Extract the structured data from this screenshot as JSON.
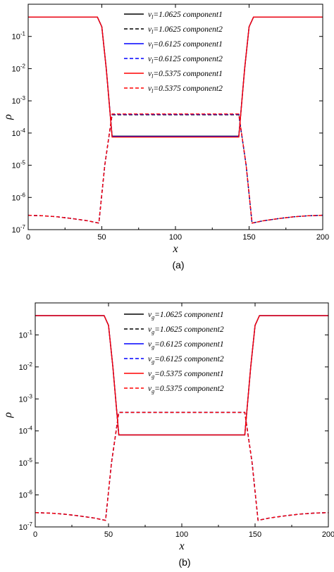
{
  "chart_data": [
    {
      "type": "line",
      "panel_label": "(a)",
      "xlabel": "x",
      "ylabel": "ρ",
      "xlim": [
        0,
        200
      ],
      "ylim": [
        1e-07,
        1
      ],
      "yscale": "log",
      "xticks": [
        "0",
        "50",
        "100",
        "150",
        "200"
      ],
      "yticks": [
        {
          "base": "10",
          "exp": "-1"
        },
        {
          "base": "10",
          "exp": "-2"
        },
        {
          "base": "10",
          "exp": "-3"
        },
        {
          "base": "10",
          "exp": "-4"
        },
        {
          "base": "10",
          "exp": "-5"
        },
        {
          "base": "10",
          "exp": "-6"
        },
        {
          "base": "10",
          "exp": "-7"
        }
      ],
      "legend_position": "top-center",
      "series": [
        {
          "name": "ν_l=1.0625  component1",
          "var": "ν",
          "sub": "l",
          "rest": "=1.0625  component1",
          "color": "#000000",
          "dash": "solid",
          "x": [
            0,
            47,
            50,
            53,
            57,
            143,
            147,
            150,
            153,
            200
          ],
          "y": [
            0.4,
            0.4,
            0.2,
            0.01,
            8e-05,
            8e-05,
            0.01,
            0.2,
            0.4,
            0.4
          ]
        },
        {
          "name": "ν_l=1.0625  component2",
          "var": "ν",
          "sub": "l",
          "rest": "=1.0625  component2",
          "color": "#000000",
          "dash": "dashed",
          "x": [
            0,
            10,
            20,
            30,
            40,
            48,
            52,
            57,
            143,
            148,
            152,
            160,
            170,
            180,
            190,
            200
          ],
          "y": [
            2.8e-07,
            2.7e-07,
            2.5e-07,
            2.2e-07,
            1.9e-07,
            1.6e-07,
            1e-05,
            0.00037,
            0.00037,
            1e-05,
            1.6e-07,
            1.9e-07,
            2.2e-07,
            2.5e-07,
            2.7e-07,
            2.8e-07
          ]
        },
        {
          "name": "ν_l=0.6125  component1",
          "var": "ν",
          "sub": "l",
          "rest": "=0.6125  component1",
          "color": "#0000ff",
          "dash": "solid",
          "x": [
            0,
            47,
            50,
            53,
            57,
            143,
            147,
            150,
            153,
            200
          ],
          "y": [
            0.4,
            0.4,
            0.2,
            0.01,
            7.8e-05,
            7.8e-05,
            0.01,
            0.2,
            0.4,
            0.4
          ]
        },
        {
          "name": "ν_l=0.6125  component2",
          "var": "ν",
          "sub": "l",
          "rest": "=0.6125  component2",
          "color": "#0000ff",
          "dash": "dashed",
          "x": [
            0,
            10,
            20,
            30,
            40,
            48,
            52,
            57,
            143,
            148,
            152,
            160,
            170,
            180,
            190,
            200
          ],
          "y": [
            2.8e-07,
            2.7e-07,
            2.5e-07,
            2.2e-07,
            1.9e-07,
            1.6e-07,
            1e-05,
            0.00038,
            0.00038,
            1e-05,
            1.6e-07,
            1.9e-07,
            2.2e-07,
            2.5e-07,
            2.7e-07,
            2.8e-07
          ]
        },
        {
          "name": "ν_l=0.5375  component1",
          "var": "ν",
          "sub": "l",
          "rest": "=0.5375  component1",
          "color": "#ff0000",
          "dash": "solid",
          "x": [
            0,
            47,
            50,
            53,
            57,
            143,
            147,
            150,
            153,
            200
          ],
          "y": [
            0.4,
            0.4,
            0.2,
            0.01,
            7.5e-05,
            7.5e-05,
            0.01,
            0.2,
            0.4,
            0.4
          ]
        },
        {
          "name": "ν_l=0.5375  component2",
          "var": "ν",
          "sub": "l",
          "rest": "=0.5375  component2",
          "color": "#ff0000",
          "dash": "dashed",
          "x": [
            0,
            10,
            20,
            30,
            40,
            48,
            52,
            57,
            143,
            148,
            152,
            160,
            170,
            180,
            190,
            200
          ],
          "y": [
            2.8e-07,
            2.7e-07,
            2.5e-07,
            2.2e-07,
            1.9e-07,
            1.6e-07,
            1e-05,
            0.00039,
            0.00039,
            1e-05,
            1.6e-07,
            1.9e-07,
            2.2e-07,
            2.5e-07,
            2.7e-07,
            2.8e-07
          ]
        }
      ]
    },
    {
      "type": "line",
      "panel_label": "(b)",
      "xlabel": "x",
      "ylabel": "ρ",
      "xlim": [
        0,
        200
      ],
      "ylim": [
        1e-07,
        1
      ],
      "yscale": "log",
      "xticks": [
        "0",
        "50",
        "100",
        "150",
        "200"
      ],
      "yticks": [
        {
          "base": "10",
          "exp": "-1"
        },
        {
          "base": "10",
          "exp": "-2"
        },
        {
          "base": "10",
          "exp": "-3"
        },
        {
          "base": "10",
          "exp": "-4"
        },
        {
          "base": "10",
          "exp": "-5"
        },
        {
          "base": "10",
          "exp": "-6"
        },
        {
          "base": "10",
          "exp": "-7"
        }
      ],
      "legend_position": "top-center",
      "series": [
        {
          "name": "ν_g=1.0625  component1",
          "var": "ν",
          "sub": "g",
          "rest": "=1.0625  component1",
          "color": "#000000",
          "dash": "solid",
          "x": [
            0,
            47,
            50,
            53,
            57,
            143,
            147,
            150,
            153,
            200
          ],
          "y": [
            0.4,
            0.4,
            0.2,
            0.01,
            7.5e-05,
            7.5e-05,
            0.01,
            0.2,
            0.4,
            0.4
          ]
        },
        {
          "name": "ν_g=1.0625  component2",
          "var": "ν",
          "sub": "g",
          "rest": "=1.0625  component2",
          "color": "#000000",
          "dash": "dashed",
          "x": [
            0,
            10,
            20,
            30,
            40,
            48,
            52,
            57,
            143,
            148,
            152,
            160,
            170,
            180,
            190,
            200
          ],
          "y": [
            2.8e-07,
            2.7e-07,
            2.5e-07,
            2.2e-07,
            1.9e-07,
            1.6e-07,
            1e-05,
            0.00038,
            0.00038,
            1e-05,
            1.6e-07,
            1.9e-07,
            2.2e-07,
            2.5e-07,
            2.7e-07,
            2.8e-07
          ]
        },
        {
          "name": "ν_g=0.6125  component1",
          "var": "ν",
          "sub": "g",
          "rest": "=0.6125  component1",
          "color": "#0000ff",
          "dash": "solid",
          "x": [
            0,
            47,
            50,
            53,
            57,
            143,
            147,
            150,
            153,
            200
          ],
          "y": [
            0.4,
            0.4,
            0.2,
            0.01,
            7.5e-05,
            7.5e-05,
            0.01,
            0.2,
            0.4,
            0.4
          ]
        },
        {
          "name": "ν_g=0.6125  component2",
          "var": "ν",
          "sub": "g",
          "rest": "=0.6125  component2",
          "color": "#0000ff",
          "dash": "dashed",
          "x": [
            0,
            10,
            20,
            30,
            40,
            48,
            52,
            57,
            143,
            148,
            152,
            160,
            170,
            180,
            190,
            200
          ],
          "y": [
            2.8e-07,
            2.7e-07,
            2.5e-07,
            2.2e-07,
            1.9e-07,
            1.6e-07,
            1e-05,
            0.00038,
            0.00038,
            1e-05,
            1.6e-07,
            1.9e-07,
            2.2e-07,
            2.5e-07,
            2.7e-07,
            2.8e-07
          ]
        },
        {
          "name": "ν_g=0.5375  component1",
          "var": "ν",
          "sub": "g",
          "rest": "=0.5375  component1",
          "color": "#ff0000",
          "dash": "solid",
          "x": [
            0,
            47,
            50,
            53,
            57,
            143,
            147,
            150,
            153,
            200
          ],
          "y": [
            0.4,
            0.4,
            0.2,
            0.01,
            7.5e-05,
            7.5e-05,
            0.01,
            0.2,
            0.4,
            0.4
          ]
        },
        {
          "name": "ν_g=0.5375  component2",
          "var": "ν",
          "sub": "g",
          "rest": "=0.5375  component2",
          "color": "#ff0000",
          "dash": "dashed",
          "x": [
            0,
            10,
            20,
            30,
            40,
            48,
            52,
            57,
            143,
            148,
            152,
            160,
            170,
            180,
            190,
            200
          ],
          "y": [
            2.8e-07,
            2.7e-07,
            2.5e-07,
            2.2e-07,
            1.9e-07,
            1.6e-07,
            1e-05,
            0.00038,
            0.00038,
            1e-05,
            1.6e-07,
            1.9e-07,
            2.2e-07,
            2.5e-07,
            2.7e-07,
            2.8e-07
          ]
        }
      ]
    }
  ]
}
